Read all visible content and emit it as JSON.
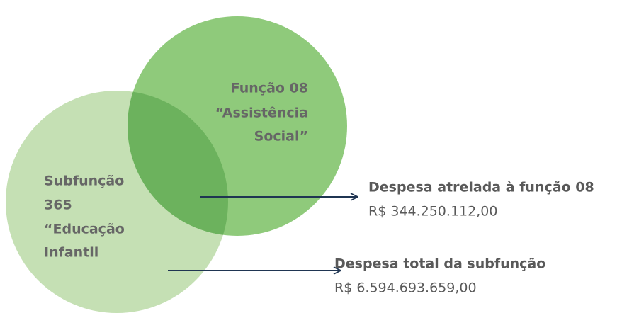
{
  "circles": [
    {
      "lines": [
        "Função 08",
        "“Assistência",
        "Social”"
      ]
    },
    {
      "lines": [
        "Subfunção",
        "365",
        "“Educação",
        "Infantil"
      ]
    }
  ],
  "annotations": [
    {
      "title": "Despesa atrelada à função 08",
      "value": "R$ 344.250.112,00"
    },
    {
      "title": "Despesa total da subfunção",
      "value": "R$ 6.594.693.659,00"
    }
  ]
}
